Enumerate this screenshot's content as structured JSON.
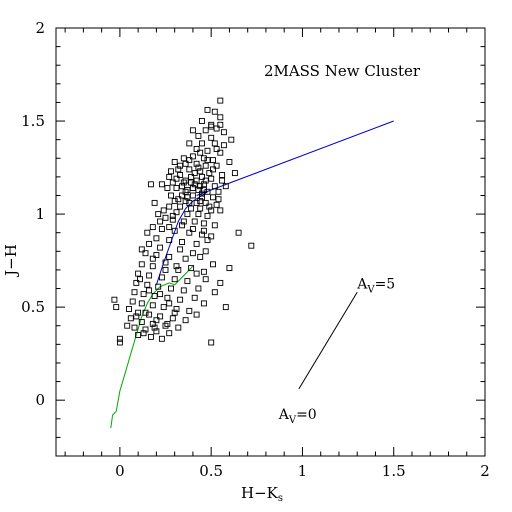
{
  "chart_data": {
    "type": "scatter",
    "title": "2MASS New Cluster",
    "xlabel": "H−K",
    "xlabel_subscript": "s",
    "ylabel": "J−H",
    "xlim": [
      -0.35,
      2.0
    ],
    "ylim": [
      -0.3,
      2.0
    ],
    "x_ticks": [
      {
        "value": 0,
        "label": "0"
      },
      {
        "value": 0.5,
        "label": "0.5"
      },
      {
        "value": 1,
        "label": "1"
      },
      {
        "value": 1.5,
        "label": "1.5"
      },
      {
        "value": 2,
        "label": "2"
      }
    ],
    "y_ticks": [
      {
        "value": 0,
        "label": "0"
      },
      {
        "value": 0.5,
        "label": "0.5"
      },
      {
        "value": 1,
        "label": "1"
      },
      {
        "value": 1.5,
        "label": "1.5"
      },
      {
        "value": 2,
        "label": "2"
      }
    ],
    "grid": false,
    "points": [
      [
        0.55,
        1.61
      ],
      [
        0.48,
        1.56
      ],
      [
        0.52,
        1.55
      ],
      [
        0.45,
        1.5
      ],
      [
        0.5,
        1.48
      ],
      [
        0.55,
        1.48
      ],
      [
        0.4,
        1.45
      ],
      [
        0.47,
        1.45
      ],
      [
        0.53,
        1.46
      ],
      [
        0.57,
        1.44
      ],
      [
        0.43,
        1.42
      ],
      [
        0.5,
        1.41
      ],
      [
        0.38,
        1.38
      ],
      [
        0.45,
        1.38
      ],
      [
        0.52,
        1.38
      ],
      [
        0.42,
        1.35
      ],
      [
        0.48,
        1.34
      ],
      [
        0.55,
        1.33
      ],
      [
        0.35,
        1.3
      ],
      [
        0.4,
        1.31
      ],
      [
        0.46,
        1.3
      ],
      [
        0.51,
        1.29
      ],
      [
        0.3,
        1.28
      ],
      [
        0.36,
        1.27
      ],
      [
        0.42,
        1.27
      ],
      [
        0.47,
        1.26
      ],
      [
        0.53,
        1.26
      ],
      [
        0.32,
        1.24
      ],
      [
        0.38,
        1.24
      ],
      [
        0.44,
        1.23
      ],
      [
        0.49,
        1.22
      ],
      [
        0.27,
        1.2
      ],
      [
        0.33,
        1.21
      ],
      [
        0.39,
        1.2
      ],
      [
        0.45,
        1.2
      ],
      [
        0.5,
        1.19
      ],
      [
        0.56,
        1.18
      ],
      [
        0.29,
        1.17
      ],
      [
        0.35,
        1.17
      ],
      [
        0.41,
        1.16
      ],
      [
        0.46,
        1.16
      ],
      [
        0.52,
        1.15
      ],
      [
        0.58,
        1.15
      ],
      [
        0.26,
        1.14
      ],
      [
        0.31,
        1.14
      ],
      [
        0.37,
        1.13
      ],
      [
        0.43,
        1.13
      ],
      [
        0.48,
        1.12
      ],
      [
        0.54,
        1.12
      ],
      [
        0.28,
        1.1
      ],
      [
        0.34,
        1.1
      ],
      [
        0.4,
        1.1
      ],
      [
        0.45,
        1.09
      ],
      [
        0.51,
        1.09
      ],
      [
        0.3,
        1.07
      ],
      [
        0.36,
        1.07
      ],
      [
        0.42,
        1.06
      ],
      [
        0.47,
        1.06
      ],
      [
        0.53,
        1.05
      ],
      [
        0.27,
        1.04
      ],
      [
        0.33,
        1.04
      ],
      [
        0.39,
        1.03
      ],
      [
        0.44,
        1.03
      ],
      [
        0.5,
        1.02
      ],
      [
        0.55,
        1.02
      ],
      [
        0.31,
        1.01
      ],
      [
        0.37,
        1.0
      ],
      [
        0.43,
        1.0
      ],
      [
        0.48,
        0.99
      ],
      [
        0.21,
        1.0
      ],
      [
        0.25,
        0.98
      ],
      [
        0.29,
        0.97
      ],
      [
        0.35,
        0.96
      ],
      [
        0.41,
        0.96
      ],
      [
        0.46,
        0.95
      ],
      [
        0.52,
        0.94
      ],
      [
        0.18,
        0.93
      ],
      [
        0.23,
        0.92
      ],
      [
        0.3,
        0.91
      ],
      [
        0.38,
        0.9
      ],
      [
        0.45,
        0.89
      ],
      [
        0.5,
        0.88
      ],
      [
        0.2,
        0.87
      ],
      [
        0.27,
        0.86
      ],
      [
        0.34,
        0.85
      ],
      [
        0.42,
        0.84
      ],
      [
        0.48,
        0.86
      ],
      [
        0.16,
        0.84
      ],
      [
        0.22,
        0.82
      ],
      [
        0.33,
        0.81
      ],
      [
        0.4,
        0.79
      ],
      [
        0.47,
        0.8
      ],
      [
        0.14,
        0.79
      ],
      [
        0.2,
        0.78
      ],
      [
        0.27,
        0.77
      ],
      [
        0.36,
        0.76
      ],
      [
        0.44,
        0.77
      ],
      [
        0.51,
        0.73
      ],
      [
        0.12,
        0.73
      ],
      [
        0.18,
        0.72
      ],
      [
        0.25,
        0.7
      ],
      [
        0.32,
        0.7
      ],
      [
        0.39,
        0.71
      ],
      [
        0.46,
        0.69
      ],
      [
        0.1,
        0.68
      ],
      [
        0.16,
        0.67
      ],
      [
        0.23,
        0.66
      ],
      [
        0.3,
        0.65
      ],
      [
        0.37,
        0.64
      ],
      [
        0.09,
        0.63
      ],
      [
        0.15,
        0.62
      ],
      [
        0.21,
        0.61
      ],
      [
        0.28,
        0.6
      ],
      [
        0.35,
        0.59
      ],
      [
        0.43,
        0.6
      ],
      [
        0.08,
        0.58
      ],
      [
        0.13,
        0.57
      ],
      [
        0.19,
        0.56
      ],
      [
        0.26,
        0.55
      ],
      [
        0.33,
        0.54
      ],
      [
        0.41,
        0.55
      ],
      [
        0.07,
        0.53
      ],
      [
        0.12,
        0.52
      ],
      [
        0.18,
        0.51
      ],
      [
        0.24,
        0.5
      ],
      [
        0.31,
        0.49
      ],
      [
        0.38,
        0.48
      ],
      [
        -0.03,
        0.54
      ],
      [
        -0.02,
        0.5
      ],
      [
        0.05,
        0.49
      ],
      [
        0.1,
        0.47
      ],
      [
        0.16,
        0.46
      ],
      [
        0.22,
        0.45
      ],
      [
        0.29,
        0.44
      ],
      [
        0.36,
        0.43
      ],
      [
        0.06,
        0.44
      ],
      [
        0.12,
        0.42
      ],
      [
        0.18,
        0.41
      ],
      [
        0.25,
        0.4
      ],
      [
        0.32,
        0.39
      ],
      [
        0.08,
        0.39
      ],
      [
        0.14,
        0.38
      ],
      [
        0.2,
        0.37
      ],
      [
        0.27,
        0.36
      ],
      [
        0.1,
        0.35
      ],
      [
        0.17,
        0.34
      ],
      [
        0.23,
        0.33
      ],
      [
        0.0,
        0.33
      ],
      [
        0.0,
        0.31
      ],
      [
        0.5,
        0.31
      ],
      [
        0.72,
        0.83
      ],
      [
        0.65,
        0.9
      ],
      [
        0.6,
        0.71
      ],
      [
        0.55,
        0.63
      ],
      [
        0.52,
        0.58
      ],
      [
        0.58,
        0.5
      ],
      [
        0.46,
        0.52
      ],
      [
        0.42,
        0.46
      ],
      [
        0.57,
        1.37
      ],
      [
        0.63,
        1.22
      ],
      [
        0.6,
        1.28
      ],
      [
        0.44,
        1.33
      ],
      [
        0.5,
        1.47
      ],
      [
        0.55,
        1.52
      ],
      [
        0.61,
        1.4
      ],
      [
        0.17,
        1.16
      ],
      [
        0.23,
        1.16
      ],
      [
        0.28,
        1.23
      ],
      [
        0.33,
        1.26
      ],
      [
        0.38,
        1.29
      ],
      [
        0.43,
        1.25
      ],
      [
        0.47,
        1.18
      ],
      [
        0.4,
        1.14
      ],
      [
        0.36,
        1.12
      ],
      [
        0.32,
        1.08
      ],
      [
        0.38,
        1.06
      ],
      [
        0.44,
        1.07
      ],
      [
        0.49,
        1.04
      ],
      [
        0.54,
        1.08
      ],
      [
        0.56,
        1.21
      ],
      [
        0.19,
        1.06
      ],
      [
        0.24,
        1.02
      ],
      [
        0.27,
        0.93
      ],
      [
        0.34,
        0.94
      ],
      [
        0.4,
        0.92
      ],
      [
        0.46,
        0.91
      ],
      [
        0.15,
        0.9
      ],
      [
        0.22,
        0.96
      ],
      [
        0.29,
        0.99
      ],
      [
        0.12,
        0.81
      ],
      [
        0.18,
        0.76
      ],
      [
        0.25,
        0.74
      ],
      [
        0.31,
        0.72
      ],
      [
        0.42,
        0.68
      ],
      [
        0.47,
        0.65
      ],
      [
        0.11,
        0.65
      ],
      [
        0.16,
        0.59
      ],
      [
        0.22,
        0.57
      ],
      [
        0.27,
        0.52
      ],
      [
        0.3,
        0.47
      ],
      [
        0.14,
        0.47
      ],
      [
        0.09,
        0.45
      ],
      [
        0.2,
        0.43
      ],
      [
        0.26,
        0.41
      ],
      [
        0.13,
        0.36
      ],
      [
        0.19,
        0.39
      ],
      [
        0.04,
        0.4
      ],
      [
        0.42,
        1.18
      ],
      [
        0.45,
        1.11
      ],
      [
        0.51,
        1.24
      ],
      [
        0.36,
        1.18
      ],
      [
        0.31,
        1.19
      ],
      [
        0.41,
        1.22
      ],
      [
        0.48,
        1.29
      ],
      [
        0.53,
        1.35
      ],
      [
        0.39,
        1.17
      ],
      [
        0.44,
        1.15
      ],
      [
        0.37,
        1.09
      ],
      [
        0.34,
        1.15
      ],
      [
        0.46,
        1.13
      ]
    ],
    "lines": [
      {
        "color": "#0000cc",
        "points": [
          [
            0.42,
            1.1
          ],
          [
            1.5,
            1.5
          ]
        ]
      },
      {
        "color": "#000000",
        "points": [
          [
            0.98,
            0.06
          ],
          [
            1.3,
            0.58
          ]
        ]
      },
      {
        "color": "#00aa00",
        "points": [
          [
            -0.05,
            -0.15
          ],
          [
            -0.04,
            -0.08
          ],
          [
            -0.02,
            -0.06
          ],
          [
            0.0,
            0.05
          ],
          [
            0.03,
            0.15
          ],
          [
            0.06,
            0.25
          ],
          [
            0.09,
            0.35
          ],
          [
            0.12,
            0.45
          ],
          [
            0.15,
            0.52
          ],
          [
            0.18,
            0.57
          ],
          [
            0.22,
            0.61
          ],
          [
            0.27,
            0.63
          ],
          [
            0.3,
            0.62
          ],
          [
            0.34,
            0.66
          ],
          [
            0.38,
            0.7
          ],
          [
            0.4,
            0.72
          ]
        ]
      },
      {
        "color": "#0000cc",
        "points": [
          [
            0.2,
            0.62
          ],
          [
            0.24,
            0.74
          ],
          [
            0.28,
            0.85
          ],
          [
            0.32,
            0.96
          ],
          [
            0.36,
            1.03
          ],
          [
            0.4,
            1.07
          ],
          [
            0.45,
            1.1
          ],
          [
            0.48,
            1.12
          ]
        ]
      }
    ],
    "annotations": [
      {
        "text": "A",
        "sub": "V",
        "suffix": "=5",
        "x": 1.3,
        "y": 0.6
      },
      {
        "text": "A",
        "sub": "V",
        "suffix": "=0",
        "x": 0.87,
        "y": -0.1
      }
    ]
  }
}
